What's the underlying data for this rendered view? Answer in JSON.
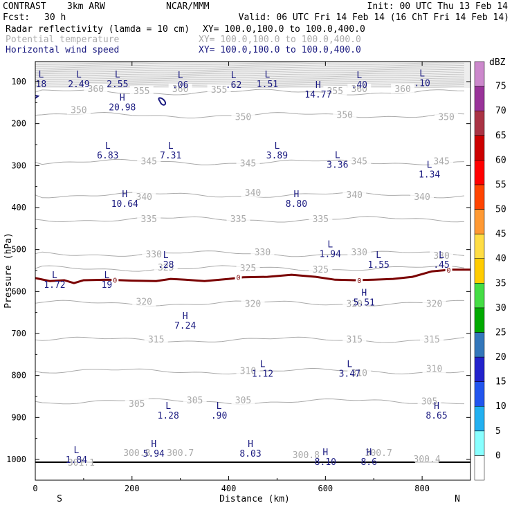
{
  "header": {
    "model": "CONTRAST",
    "resolution": "3km ARW",
    "center": "NCAR/MMM",
    "init": "Init: 00 UTC Thu 13 Feb 14",
    "fcst_label": "Fcst:",
    "fcst_value": "30 h",
    "valid": "Valid: 06 UTC Fri 14 Feb 14 (16 ChT Fri 14 Feb 14)"
  },
  "fields": [
    {
      "name": "Radar reflectivity (lamda = 10 cm)",
      "xy": "XY= 100.0,100.0 to 100.0,400.0"
    },
    {
      "name": "Potential temperature",
      "xy": "XY= 100.0,100.0 to 100.0,400.0"
    },
    {
      "name": "Horizontal wind speed",
      "xy": "XY= 100.0,100.0 to 100.0,400.0"
    }
  ],
  "colors": {
    "reflectivity": "#000000",
    "theta": "#aaaaaa",
    "wind": "#1a1a80",
    "freezing": "#7a0000"
  },
  "chart_data": {
    "type": "cross-section",
    "xlabel": "Distance (km)",
    "ylabel": "Pressure (hPa)",
    "xlim": [
      0,
      900
    ],
    "ylim": [
      1050,
      50
    ],
    "x_ticks": [
      "0",
      "200",
      "400",
      "600",
      "800"
    ],
    "y_ticks": [
      "100",
      "200",
      "300",
      "400",
      "500",
      "600",
      "700",
      "800",
      "900",
      "1000"
    ],
    "endpoint_left": "S",
    "endpoint_right": "N",
    "colorbar": {
      "unit": "dBZ",
      "labels": [
        "0",
        "5",
        "10",
        "15",
        "20",
        "25",
        "30",
        "35",
        "40",
        "45",
        "50",
        "55",
        "60",
        "65",
        "70",
        "75"
      ],
      "colors": [
        "#ffffff",
        "#88ffff",
        "#22b0f0",
        "#2255ee",
        "#2222cc",
        "#3377bb",
        "#00aa00",
        "#44dd44",
        "#ffcc00",
        "#ffdd44",
        "#ff9933",
        "#ff4400",
        "#ff0000",
        "#cc0000",
        "#aa3344",
        "#993399",
        "#cc88cc"
      ]
    },
    "theta_levels": [
      {
        "value": "300.4",
        "dist": 810,
        "p": 1000
      },
      {
        "value": "300.7",
        "dist": 300,
        "p": 985
      },
      {
        "value": "300.8",
        "dist": 210,
        "p": 985
      },
      {
        "value": "300.8",
        "dist": 560,
        "p": 990
      },
      {
        "value": "300.7",
        "dist": 710,
        "p": 985
      },
      {
        "value": "301.1",
        "dist": 95,
        "p": 1008
      },
      {
        "value": "305",
        "dist": 210,
        "p": 868
      },
      {
        "value": "305",
        "dist": 330,
        "p": 860
      },
      {
        "value": "305",
        "dist": 430,
        "p": 860
      },
      {
        "value": "305",
        "dist": 815,
        "p": 862
      },
      {
        "value": "310",
        "dist": 440,
        "p": 790
      },
      {
        "value": "310",
        "dist": 670,
        "p": 795
      },
      {
        "value": "310",
        "dist": 825,
        "p": 785
      },
      {
        "value": "315",
        "dist": 250,
        "p": 715
      },
      {
        "value": "315",
        "dist": 660,
        "p": 715
      },
      {
        "value": "315",
        "dist": 820,
        "p": 715
      },
      {
        "value": "320",
        "dist": 225,
        "p": 625
      },
      {
        "value": "320",
        "dist": 450,
        "p": 630
      },
      {
        "value": "320",
        "dist": 660,
        "p": 630
      },
      {
        "value": "320",
        "dist": 825,
        "p": 630
      },
      {
        "value": "325",
        "dist": 270,
        "p": 543
      },
      {
        "value": "325",
        "dist": 440,
        "p": 545
      },
      {
        "value": "325",
        "dist": 590,
        "p": 548
      },
      {
        "value": "330",
        "dist": 245,
        "p": 512
      },
      {
        "value": "330",
        "dist": 470,
        "p": 507
      },
      {
        "value": "330",
        "dist": 670,
        "p": 507
      },
      {
        "value": "330",
        "dist": 840,
        "p": 515
      },
      {
        "value": "335",
        "dist": 235,
        "p": 428
      },
      {
        "value": "335",
        "dist": 420,
        "p": 428
      },
      {
        "value": "335",
        "dist": 590,
        "p": 428
      },
      {
        "value": "340",
        "dist": 225,
        "p": 375
      },
      {
        "value": "340",
        "dist": 450,
        "p": 365
      },
      {
        "value": "340",
        "dist": 660,
        "p": 370
      },
      {
        "value": "340",
        "dist": 800,
        "p": 375
      },
      {
        "value": "345",
        "dist": 235,
        "p": 290
      },
      {
        "value": "345",
        "dist": 440,
        "p": 295
      },
      {
        "value": "345",
        "dist": 670,
        "p": 290
      },
      {
        "value": "345",
        "dist": 840,
        "p": 290
      },
      {
        "value": "350",
        "dist": 90,
        "p": 168
      },
      {
        "value": "350",
        "dist": 430,
        "p": 185
      },
      {
        "value": "350",
        "dist": 640,
        "p": 180
      },
      {
        "value": "350",
        "dist": 850,
        "p": 185
      },
      {
        "value": "355",
        "dist": 220,
        "p": 123
      },
      {
        "value": "355",
        "dist": 380,
        "p": 120
      },
      {
        "value": "355",
        "dist": 620,
        "p": 123
      },
      {
        "value": "360",
        "dist": 125,
        "p": 118
      },
      {
        "value": "360",
        "dist": 300,
        "p": 118
      },
      {
        "value": "360",
        "dist": 670,
        "p": 118
      },
      {
        "value": "360",
        "dist": 760,
        "p": 118
      }
    ],
    "wind_extrema": [
      {
        "mark": "L",
        "value": "18",
        "dist": 12,
        "p": 90
      },
      {
        "mark": "L",
        "value": "2.49",
        "dist": 90,
        "p": 90
      },
      {
        "mark": "L",
        "value": "2.55",
        "dist": 170,
        "p": 90
      },
      {
        "mark": "L",
        "value": ".06",
        "dist": 300,
        "p": 92
      },
      {
        "mark": "L",
        "value": ".62",
        "dist": 410,
        "p": 92
      },
      {
        "mark": "L",
        "value": "1.51",
        "dist": 480,
        "p": 90
      },
      {
        "mark": "H",
        "value": "14.77",
        "dist": 585,
        "p": 115
      },
      {
        "mark": "L",
        "value": ".40",
        "dist": 670,
        "p": 92
      },
      {
        "mark": "L",
        "value": ".10",
        "dist": 800,
        "p": 88
      },
      {
        "mark": "H",
        "value": "20.98",
        "dist": 180,
        "p": 145
      },
      {
        "mark": "L",
        "value": "6.83",
        "dist": 150,
        "p": 260
      },
      {
        "mark": "L",
        "value": "7.31",
        "dist": 280,
        "p": 260
      },
      {
        "mark": "L",
        "value": "3.89",
        "dist": 500,
        "p": 260
      },
      {
        "mark": "L",
        "value": "3.36",
        "dist": 625,
        "p": 282
      },
      {
        "mark": "L",
        "value": "1.34",
        "dist": 815,
        "p": 305
      },
      {
        "mark": "H",
        "value": "10.64",
        "dist": 185,
        "p": 375
      },
      {
        "mark": "H",
        "value": "8.80",
        "dist": 540,
        "p": 375
      },
      {
        "mark": "L",
        "value": "1.94",
        "dist": 610,
        "p": 495
      },
      {
        "mark": "L",
        "value": ".28",
        "dist": 270,
        "p": 520
      },
      {
        "mark": "L",
        "value": "1.55",
        "dist": 710,
        "p": 520
      },
      {
        "mark": "L",
        "value": ".45",
        "dist": 840,
        "p": 520
      },
      {
        "mark": "L",
        "value": "1.72",
        "dist": 40,
        "p": 568
      },
      {
        "mark": "L",
        "value": "19",
        "dist": 148,
        "p": 568
      },
      {
        "mark": "H",
        "value": "5.51",
        "dist": 680,
        "p": 610
      },
      {
        "mark": "H",
        "value": "7.24",
        "dist": 310,
        "p": 665
      },
      {
        "mark": "L",
        "value": "1.12",
        "dist": 470,
        "p": 780
      },
      {
        "mark": "L",
        "value": "3.47",
        "dist": 650,
        "p": 780
      },
      {
        "mark": "L",
        "value": "1.28",
        "dist": 275,
        "p": 880
      },
      {
        "mark": "L",
        "value": ".90",
        "dist": 380,
        "p": 880
      },
      {
        "mark": "H",
        "value": "8.65",
        "dist": 830,
        "p": 880
      },
      {
        "mark": "H",
        "value": "5.94",
        "dist": 245,
        "p": 970
      },
      {
        "mark": "H",
        "value": "8.03",
        "dist": 445,
        "p": 970
      },
      {
        "mark": "L",
        "value": "1.84",
        "dist": 85,
        "p": 985
      },
      {
        "mark": "H",
        "value": "8.10",
        "dist": 600,
        "p": 990
      },
      {
        "mark": "H",
        "value": "8.6",
        "dist": 690,
        "p": 990
      }
    ],
    "freezing_level_label": "0",
    "freezing_level_label_dists": [
      165,
      420,
      670,
      855
    ],
    "freezing_level": {
      "dist": [
        0,
        30,
        60,
        80,
        100,
        150,
        200,
        250,
        280,
        310,
        350,
        400,
        430,
        480,
        530,
        580,
        620,
        660,
        700,
        740,
        780,
        820,
        860,
        900
      ],
      "p": [
        568,
        575,
        573,
        580,
        573,
        572,
        574,
        575,
        570,
        572,
        575,
        570,
        566,
        565,
        560,
        565,
        572,
        573,
        572,
        570,
        565,
        552,
        548,
        548
      ]
    }
  }
}
